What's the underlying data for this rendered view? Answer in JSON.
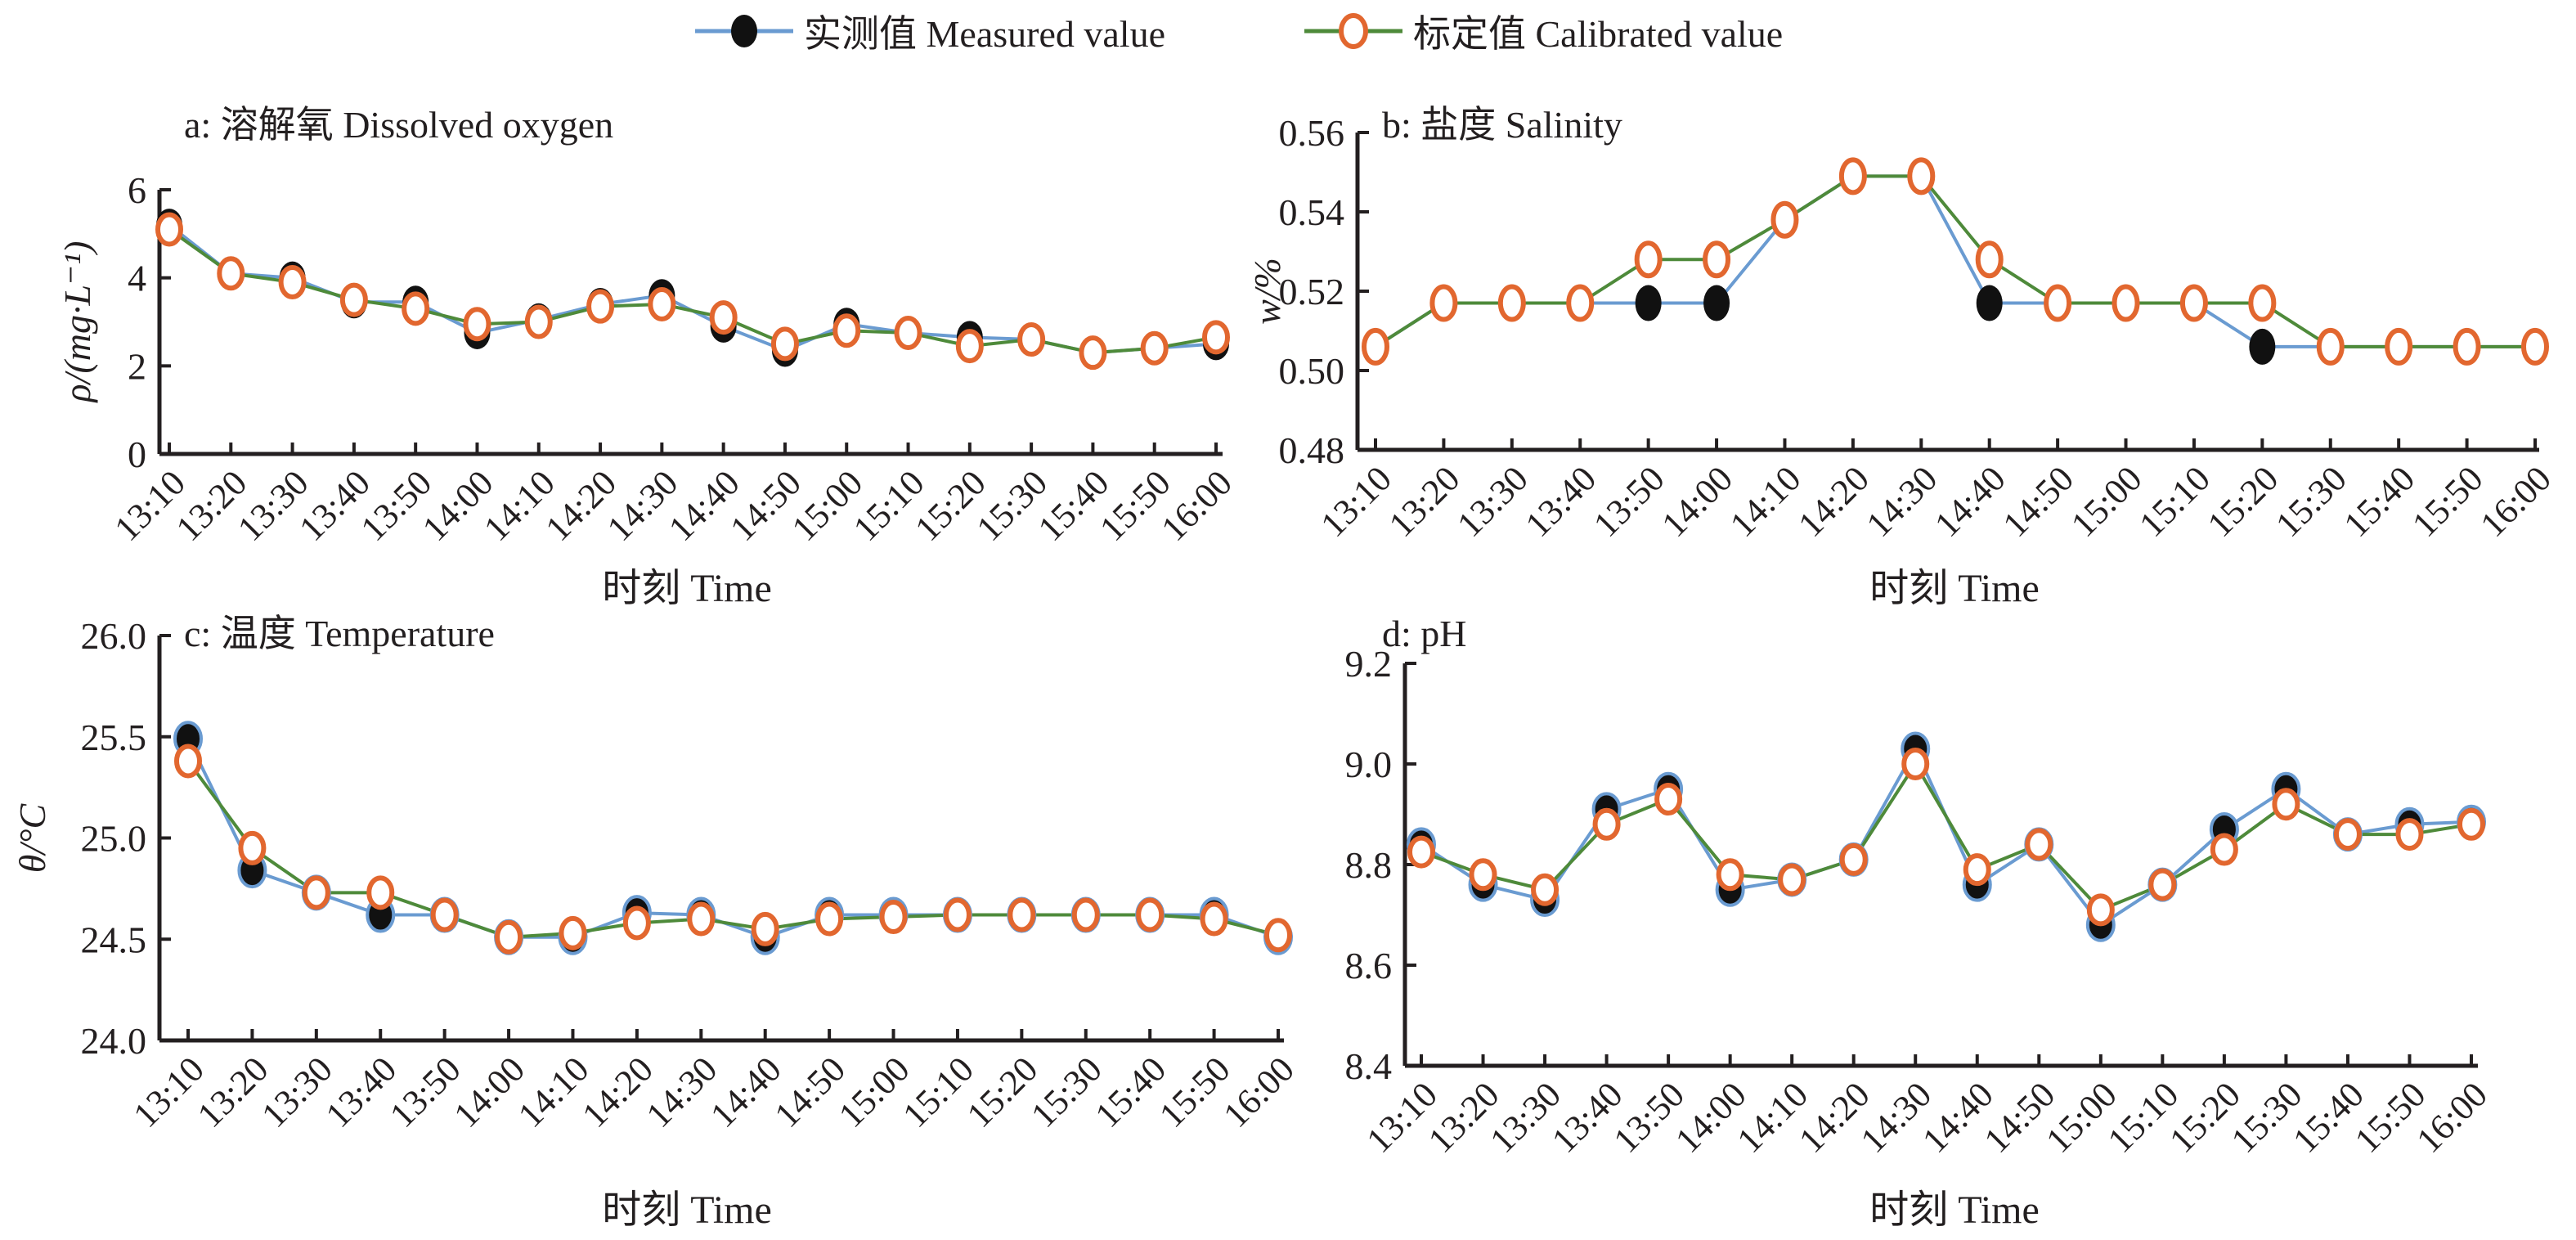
{
  "legend": {
    "measured_label": "实测值 Measured value",
    "calibrated_label": "标定值 Calibrated value"
  },
  "colors": {
    "measured_marker": "#111111",
    "measured_line": "#6a9bd1",
    "calibrated_marker_edge": "#e2672f",
    "calibrated_line": "#4e8a3a",
    "axis": "#231f20"
  },
  "chart_data": [
    {
      "id": "a",
      "type": "line",
      "title": "a: 溶解氧  Dissolved oxygen",
      "xlabel": "时刻 Time",
      "ylabel": "ρ/(mg·L⁻¹)",
      "ylim": [
        0,
        6
      ],
      "yticks": [
        "0",
        "2",
        "4",
        "6"
      ],
      "ytick_values": [
        0,
        2,
        4,
        6
      ],
      "categories": [
        "13:10",
        "13:20",
        "13:30",
        "13:40",
        "13:50",
        "14:00",
        "14:10",
        "14:20",
        "14:30",
        "14:40",
        "14:50",
        "15:00",
        "15:10",
        "15:20",
        "15:30",
        "15:40",
        "15:50",
        "16:00"
      ],
      "series": [
        {
          "name": "实测值 Measured value",
          "values": [
            5.2,
            4.1,
            4.0,
            3.45,
            3.45,
            2.75,
            3.05,
            3.4,
            3.6,
            2.9,
            2.35,
            2.95,
            2.75,
            2.65,
            2.6,
            2.3,
            2.4,
            2.5
          ]
        },
        {
          "name": "标定值 Calibrated value",
          "values": [
            5.1,
            4.1,
            3.9,
            3.5,
            3.3,
            2.95,
            3.0,
            3.35,
            3.4,
            3.1,
            2.5,
            2.8,
            2.75,
            2.45,
            2.6,
            2.3,
            2.4,
            2.65
          ]
        }
      ],
      "grid": false
    },
    {
      "id": "b",
      "type": "line",
      "title": "b: 盐度 Salinity",
      "xlabel": "时刻 Time",
      "ylabel": "w/%",
      "ylim": [
        0.48,
        0.56
      ],
      "yticks": [
        "0.48",
        "0.50",
        "0.52",
        "0.54",
        "0.56"
      ],
      "ytick_values": [
        0.48,
        0.5,
        0.52,
        0.54,
        0.56
      ],
      "categories": [
        "13:10",
        "13:20",
        "13:30",
        "13:40",
        "13:50",
        "14:00",
        "14:10",
        "14:20",
        "14:30",
        "14:40",
        "14:50",
        "15:00",
        "15:10",
        "15:20",
        "15:30",
        "15:40",
        "15:50",
        "16:00"
      ],
      "series": [
        {
          "name": "实测值 Measured value",
          "values": [
            0.506,
            0.517,
            0.517,
            0.517,
            0.517,
            0.517,
            0.538,
            0.549,
            0.549,
            0.517,
            0.517,
            0.517,
            0.517,
            0.506,
            0.506,
            0.506,
            0.506,
            0.506
          ]
        },
        {
          "name": "标定值 Calibrated value",
          "values": [
            0.506,
            0.517,
            0.517,
            0.517,
            0.528,
            0.528,
            0.538,
            0.549,
            0.549,
            0.528,
            0.517,
            0.517,
            0.517,
            0.517,
            0.506,
            0.506,
            0.506,
            0.506
          ]
        }
      ],
      "grid": false
    },
    {
      "id": "c",
      "type": "line",
      "title": "c: 温度  Temperature",
      "xlabel": "时刻 Time",
      "ylabel": "θ/°C",
      "ylim": [
        24.0,
        26.0
      ],
      "yticks": [
        "24.0",
        "24.5",
        "25.0",
        "25.5",
        "26.0"
      ],
      "ytick_values": [
        24.0,
        24.5,
        25.0,
        25.5,
        26.0
      ],
      "categories": [
        "13:10",
        "13:20",
        "13:30",
        "13:40",
        "13:50",
        "14:00",
        "14:10",
        "14:20",
        "14:30",
        "14:40",
        "14:50",
        "15:00",
        "15:10",
        "15:20",
        "15:30",
        "15:40",
        "15:50",
        "16:00"
      ],
      "series": [
        {
          "name": "实测值 Measured value",
          "values": [
            25.49,
            24.84,
            24.73,
            24.62,
            24.62,
            24.51,
            24.51,
            24.63,
            24.62,
            24.51,
            24.62,
            24.62,
            24.62,
            24.62,
            24.62,
            24.62,
            24.62,
            24.51
          ]
        },
        {
          "name": "标定值 Calibrated value",
          "values": [
            25.38,
            24.95,
            24.73,
            24.73,
            24.62,
            24.51,
            24.53,
            24.58,
            24.6,
            24.55,
            24.6,
            24.61,
            24.62,
            24.62,
            24.62,
            24.62,
            24.6,
            24.52
          ]
        }
      ],
      "grid": false
    },
    {
      "id": "d",
      "type": "line",
      "title": "d: pH",
      "xlabel": "时刻 Time",
      "ylabel": "",
      "ylim": [
        8.4,
        9.2
      ],
      "yticks": [
        "8.4",
        "8.6",
        "8.8",
        "9.0",
        "9.2"
      ],
      "ytick_values": [
        8.4,
        8.6,
        8.8,
        9.0,
        9.2
      ],
      "categories": [
        "13:10",
        "13:20",
        "13:30",
        "13:40",
        "13:50",
        "14:00",
        "14:10",
        "14:20",
        "14:30",
        "14:40",
        "14:50",
        "15:00",
        "15:10",
        "15:20",
        "15:30",
        "15:40",
        "15:50",
        "16:00"
      ],
      "series": [
        {
          "name": "实测值 Measured value",
          "values": [
            8.84,
            8.76,
            8.73,
            8.91,
            8.95,
            8.75,
            8.77,
            8.81,
            9.03,
            8.76,
            8.84,
            8.68,
            8.76,
            8.87,
            8.95,
            8.86,
            8.88,
            8.885
          ]
        },
        {
          "name": "标定值 Calibrated value",
          "values": [
            8.825,
            8.78,
            8.75,
            8.88,
            8.93,
            8.78,
            8.77,
            8.81,
            9.0,
            8.79,
            8.84,
            8.71,
            8.76,
            8.83,
            8.92,
            8.86,
            8.86,
            8.88
          ]
        }
      ],
      "grid": false
    }
  ]
}
